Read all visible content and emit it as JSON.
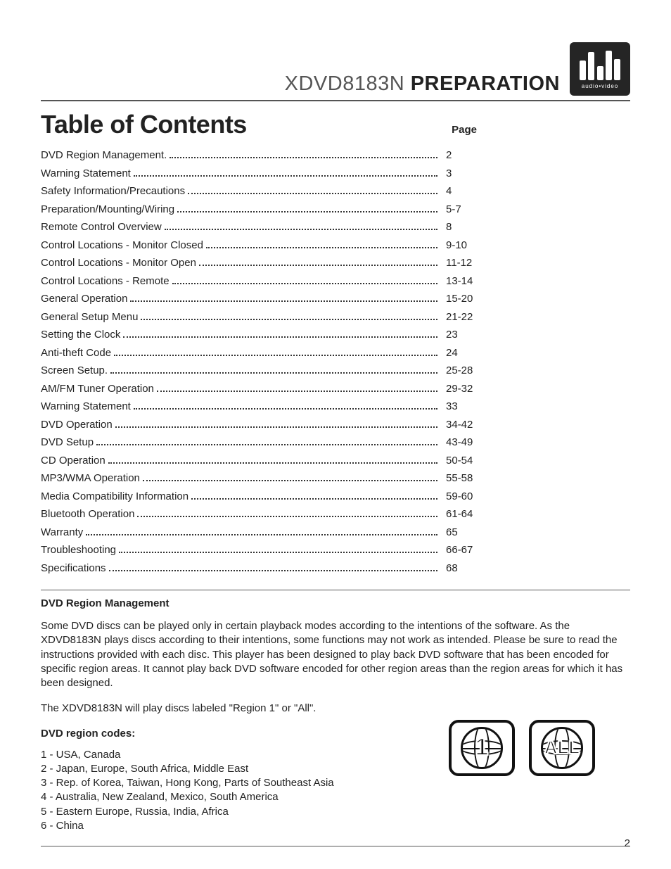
{
  "header": {
    "model": "XDVD8183N",
    "section": "PREPARATION",
    "logo_tag": "audio•video",
    "logo_bg": "#252525",
    "logo_bar_heights": [
      28,
      40,
      20,
      42,
      30
    ]
  },
  "toc": {
    "title": "Table of Contents",
    "page_label": "Page",
    "entries": [
      {
        "label": "DVD Region Management.",
        "page": "2"
      },
      {
        "label": "Warning Statement",
        "page": "3"
      },
      {
        "label": "Safety Information/Precautions",
        "page": "4"
      },
      {
        "label": "Preparation/Mounting/Wiring",
        "page": "5-7"
      },
      {
        "label": "Remote Control Overview",
        "page": "8"
      },
      {
        "label": "Control Locations - Monitor Closed",
        "page": "9-10"
      },
      {
        "label": "Control Locations - Monitor Open",
        "page": "11-12"
      },
      {
        "label": "Control Locations - Remote",
        "page": "13-14"
      },
      {
        "label": "General Operation",
        "page": "15-20"
      },
      {
        "label": "General Setup Menu",
        "page": "21-22"
      },
      {
        "label": "Setting the Clock",
        "page": "23"
      },
      {
        "label": "Anti-theft Code",
        "page": "24"
      },
      {
        "label": "Screen Setup.",
        "page": "25-28"
      },
      {
        "label": "AM/FM Tuner Operation",
        "page": "29-32"
      },
      {
        "label": "Warning Statement",
        "page": "33"
      },
      {
        "label": "DVD Operation",
        "page": "34-42"
      },
      {
        "label": "DVD Setup",
        "page": "43-49"
      },
      {
        "label": "CD Operation",
        "page": "50-54"
      },
      {
        "label": "MP3/WMA Operation",
        "page": "55-58"
      },
      {
        "label": "Media Compatibility Information",
        "page": "59-60"
      },
      {
        "label": "Bluetooth Operation",
        "page": "61-64"
      },
      {
        "label": "Warranty",
        "page": "65"
      },
      {
        "label": "Troubleshooting",
        "page": "66-67"
      },
      {
        "label": "Specifications",
        "page": "68"
      }
    ]
  },
  "region": {
    "heading": "DVD Region Management",
    "para1": "Some DVD discs can be played only in certain playback modes according to the intentions of the software. As the XDVD8183N plays discs according to their intentions, some functions may not work as intended. Please be sure to read the instructions provided with each disc. This player has been designed to play back DVD software that has been encoded for specific region areas. It cannot play back DVD software encoded for other region areas than the region areas for which it has been designed.",
    "para2": "The XDVD8183N will play discs labeled \"Region 1\" or \"All\".",
    "codes_heading": "DVD region codes:",
    "codes": [
      "1 - USA, Canada",
      "2 - Japan, Europe, South Africa, Middle East",
      "3 - Rep. of Korea, Taiwan, Hong Kong, Parts of Southeast Asia",
      "4 - Australia, New Zealand, Mexico, South America",
      "5 - Eastern Europe, Russia, India, Africa",
      "6 - China"
    ],
    "icon1_text": "1",
    "icon2_text": "ALL"
  },
  "page_number": "2",
  "colors": {
    "text": "#222222",
    "rule": "#555555",
    "bg": "#ffffff"
  }
}
